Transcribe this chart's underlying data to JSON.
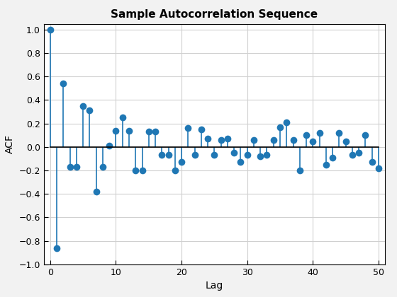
{
  "lags": [
    0,
    1,
    2,
    3,
    4,
    5,
    6,
    7,
    8,
    9,
    10,
    11,
    12,
    13,
    14,
    15,
    16,
    17,
    18,
    19,
    20,
    21,
    22,
    23,
    24,
    25,
    26,
    27,
    28,
    29,
    30,
    31,
    32,
    33,
    34,
    35,
    36,
    37,
    38,
    39,
    40,
    41,
    42,
    43,
    44,
    45,
    46,
    47,
    48,
    49,
    50
  ],
  "acf": [
    1.0,
    -0.86,
    0.54,
    -0.17,
    -0.17,
    0.35,
    0.31,
    -0.38,
    -0.17,
    0.01,
    0.14,
    0.25,
    0.14,
    -0.2,
    -0.2,
    0.13,
    0.13,
    -0.07,
    -0.07,
    -0.2,
    -0.13,
    0.16,
    -0.07,
    0.15,
    0.07,
    -0.07,
    0.06,
    0.07,
    -0.05,
    -0.13,
    -0.07,
    0.06,
    -0.08,
    -0.07,
    0.06,
    0.17,
    0.21,
    0.06,
    -0.2,
    0.1,
    0.05,
    0.12,
    -0.15,
    -0.09,
    0.12,
    0.05,
    -0.07,
    -0.05,
    0.1,
    -0.13,
    -0.18
  ],
  "title": "Sample Autocorrelation Sequence",
  "xlabel": "Lag",
  "ylabel": "ACF",
  "xlim": [
    -1,
    51
  ],
  "ylim": [
    -1,
    1.05
  ],
  "yticks": [
    -1,
    -0.8,
    -0.6,
    -0.4,
    -0.2,
    0,
    0.2,
    0.4,
    0.6,
    0.8,
    1
  ],
  "xticks": [
    0,
    10,
    20,
    30,
    40,
    50
  ],
  "stem_color": "#1f77b4",
  "marker_color": "#1f77b4",
  "baseline_color": "#000000",
  "grid_color": "#d0d0d0",
  "bg_color": "#ffffff",
  "fig_bg_color": "#f2f2f2",
  "title_fontsize": 11,
  "label_fontsize": 10,
  "tick_fontsize": 9,
  "marker_size": 7,
  "line_width": 1.2
}
